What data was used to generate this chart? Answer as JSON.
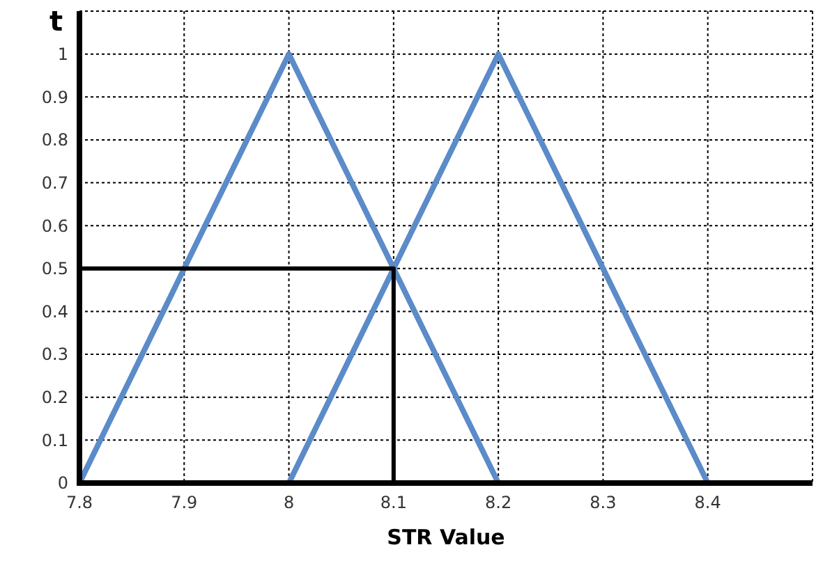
{
  "chart_data": {
    "type": "line",
    "xlabel": "STR Value",
    "ylabel": "t",
    "xlim": [
      7.8,
      8.5
    ],
    "xticks": [
      7.8,
      7.9,
      8,
      8.1,
      8.2,
      8.3,
      8.4
    ],
    "ylim": [
      0,
      1.1
    ],
    "yticks": [
      0,
      0.1,
      0.2,
      0.3,
      0.4,
      0.5,
      0.6,
      0.7,
      0.8,
      0.9,
      1
    ],
    "grid": true,
    "marker": "none",
    "line_style": "solid",
    "series": [
      {
        "color": "#5b8bc8",
        "x": [
          7.8,
          8,
          8.2
        ],
        "values": [
          0,
          1,
          0
        ]
      },
      {
        "color": "#5b8bc8",
        "x": [
          8,
          8.2,
          8.4
        ],
        "values": [
          0,
          1,
          0
        ]
      },
      {
        "color": "#000000",
        "x": [
          7.8,
          8.1,
          8.1
        ],
        "values": [
          0.5,
          0.5,
          0
        ]
      }
    ]
  }
}
